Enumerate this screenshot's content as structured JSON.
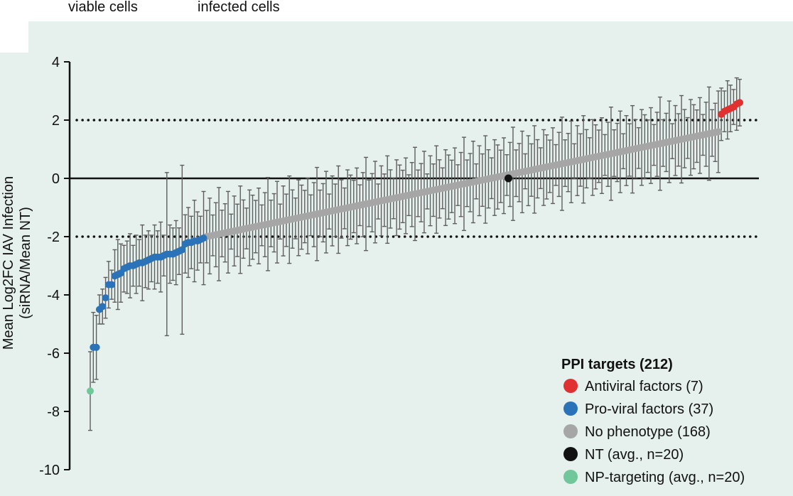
{
  "top_labels": [
    "viable cells",
    "infected cells"
  ],
  "colors": {
    "panel_bg": "#e6f1ee",
    "antiviral": "#e03030",
    "proviral": "#2a73b9",
    "nophenotype": "#a6a6a6",
    "nt": "#111111",
    "np": "#6fc79a",
    "errorbar": "#5e5e5e"
  },
  "chart_data": {
    "type": "scatter",
    "ylabel": "Mean Log2FC IAV Infection",
    "ylabel2": "(siRNA/Mean NT)",
    "ylim": [
      -10,
      4
    ],
    "yticks": [
      "4",
      "2",
      "0",
      "-2",
      "-4",
      "-6",
      "-8",
      "-10"
    ],
    "reference_lines": [
      {
        "y": 2,
        "style": "dotted"
      },
      {
        "y": -2,
        "style": "dotted"
      },
      {
        "y": 0,
        "style": "solid"
      }
    ],
    "legend": {
      "title": "PPI targets (212)",
      "placement": "bottom-right",
      "entries": [
        {
          "label": "Antiviral factors (7)",
          "color_key": "antiviral"
        },
        {
          "label": "Pro-viral factors (37)",
          "color_key": "proviral"
        },
        {
          "label": "No phenotype (168)",
          "color_key": "nophenotype"
        },
        {
          "label": "NT (avg., n=20)",
          "color_key": "nt"
        },
        {
          "label": "NP-targeting (avg., n=20)",
          "color_key": "np"
        }
      ]
    },
    "series": [
      {
        "name": "NP-targeting (avg., n=20)",
        "color_key": "np",
        "rank_start": 0,
        "values": [
          -7.3
        ],
        "errors": [
          1.35
        ]
      },
      {
        "name": "Pro-viral factors (37)",
        "color_key": "proviral",
        "rank_start": 1,
        "values": [
          -5.8,
          -5.8,
          -4.5,
          -4.4,
          -4.1,
          -3.65,
          -3.65,
          -3.35,
          -3.3,
          -3.25,
          -3.1,
          -3.05,
          -3.0,
          -3.0,
          -2.95,
          -2.9,
          -2.9,
          -2.85,
          -2.8,
          -2.75,
          -2.7,
          -2.7,
          -2.7,
          -2.65,
          -2.6,
          -2.6,
          -2.6,
          -2.55,
          -2.5,
          -2.45,
          -2.25,
          -2.2,
          -2.2,
          -2.15,
          -2.15,
          -2.1,
          -2.05
        ],
        "errors": [
          1.2,
          1.1,
          0.5,
          0.6,
          0.7,
          0.8,
          0.5,
          0.9,
          1.2,
          1.0,
          0.8,
          0.9,
          1.1,
          0.7,
          1.0,
          0.8,
          1.3,
          0.9,
          1.0,
          0.8,
          1.1,
          0.9,
          1.2,
          0.7,
          2.8,
          1.0,
          0.9,
          1.1,
          0.8,
          2.9,
          1.0,
          1.2,
          0.9,
          1.4,
          1.0,
          0.8,
          1.6
        ]
      },
      {
        "name": "No phenotype (168)",
        "color_key": "nophenotype",
        "rank_start": 38,
        "values_from": -2.0,
        "values_to": 1.6,
        "count": 168,
        "errors_cycle": [
          0.9,
          1.3,
          0.7,
          1.1,
          1.6,
          0.8,
          1.0,
          1.4,
          0.6,
          1.2,
          0.9,
          1.5,
          1.0,
          0.7,
          1.3,
          1.1
        ]
      },
      {
        "name": "NT (avg., n=20)",
        "color_key": "nt",
        "rank": 136.5,
        "values": [
          0.0
        ],
        "errors": [
          0
        ]
      },
      {
        "name": "Antiviral factors (7)",
        "color_key": "antiviral",
        "rank_start": 206,
        "values": [
          2.2,
          2.3,
          2.35,
          2.4,
          2.45,
          2.55,
          2.6
        ],
        "errors": [
          0.9,
          0.7,
          1.0,
          0.8,
          0.6,
          0.9,
          0.8
        ]
      }
    ]
  }
}
